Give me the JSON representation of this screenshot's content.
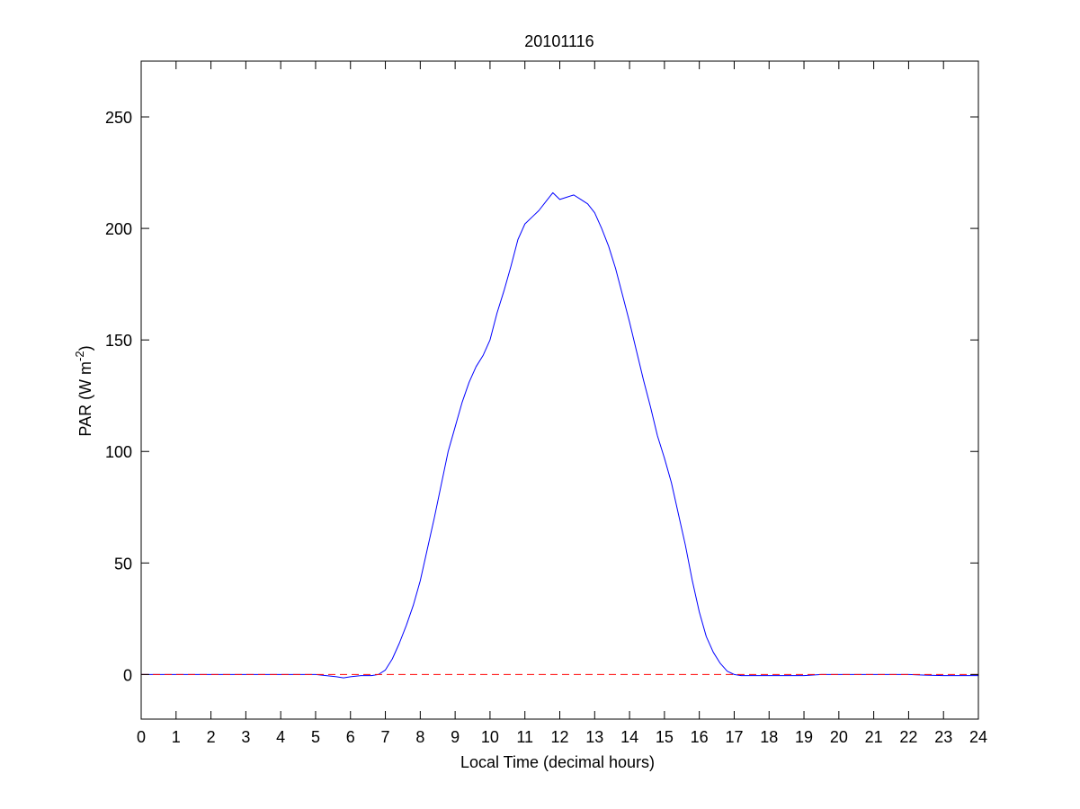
{
  "chart_data": {
    "type": "line",
    "title": "20101116",
    "xlabel": "Local Time (decimal hours)",
    "ylabel": {
      "base": "PAR (W m",
      "superscript": "-2",
      "closing": ")"
    },
    "xlim": [
      0,
      24
    ],
    "ylim": [
      -20,
      275
    ],
    "xticks": [
      0,
      1,
      2,
      3,
      4,
      5,
      6,
      7,
      8,
      9,
      10,
      11,
      12,
      13,
      14,
      15,
      16,
      17,
      18,
      19,
      20,
      21,
      22,
      23,
      24
    ],
    "yticks": [
      0,
      50,
      100,
      150,
      200,
      250
    ],
    "grid": false,
    "legend": "none",
    "series": [
      {
        "color": "#0000ff",
        "style": "solid",
        "x": [
          0,
          0.5,
          1,
          2,
          3,
          4,
          4.5,
          5,
          5.3,
          5.6,
          5.8,
          6,
          6.3,
          6.6,
          6.8,
          7,
          7.2,
          7.4,
          7.6,
          7.8,
          8,
          8.2,
          8.4,
          8.6,
          8.8,
          9,
          9.2,
          9.4,
          9.6,
          9.8,
          10,
          10.2,
          10.4,
          10.6,
          10.8,
          11,
          11.2,
          11.4,
          11.6,
          11.8,
          12,
          12.2,
          12.4,
          12.6,
          12.8,
          13,
          13.2,
          13.4,
          13.6,
          13.8,
          14,
          14.2,
          14.4,
          14.6,
          14.8,
          15,
          15.2,
          15.4,
          15.6,
          15.8,
          16,
          16.2,
          16.4,
          16.6,
          16.8,
          17,
          17.2,
          17.4,
          17.6,
          18,
          18.5,
          19,
          19.5,
          20,
          21,
          22,
          22.5,
          23,
          23.5,
          24
        ],
        "y": [
          0,
          0,
          0,
          0,
          0,
          0,
          0,
          0,
          -0.5,
          -1,
          -1.5,
          -1,
          -0.5,
          -0.5,
          0,
          2,
          7,
          14,
          22,
          31,
          42,
          56,
          70,
          85,
          100,
          111,
          122,
          131,
          138,
          143,
          150,
          162,
          172,
          183,
          195,
          202,
          205,
          208,
          212,
          216,
          213,
          214,
          215,
          213,
          211,
          207,
          200,
          192,
          182,
          170,
          158,
          145,
          132,
          120,
          107,
          97,
          86,
          72,
          58,
          42,
          28,
          17,
          10,
          5,
          1.5,
          0,
          -0.5,
          -0.5,
          -0.5,
          -0.5,
          -0.5,
          -0.5,
          0,
          0,
          0,
          0,
          -0.3,
          -0.5,
          -0.5,
          -0.5
        ]
      },
      {
        "color": "#ff0000",
        "style": "dashed",
        "x": [
          0,
          24
        ],
        "y": [
          0,
          0
        ]
      }
    ]
  }
}
